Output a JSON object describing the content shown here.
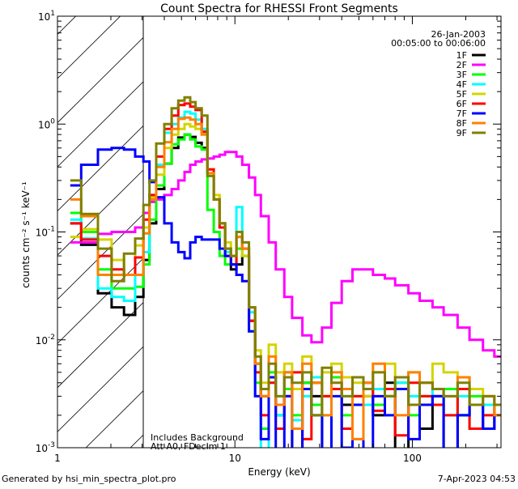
{
  "chart_data": {
    "type": "line",
    "title": "Count Spectra for RHESSI Front Segments",
    "xlabel": "Energy (keV)",
    "ylabel": "counts cm⁻² s⁻¹ keV⁻¹",
    "xscale": "log",
    "yscale": "log",
    "xlim": [
      1,
      316
    ],
    "ylim": [
      0.001,
      10
    ],
    "x_tick_labels": [
      "1",
      "10",
      "100"
    ],
    "x_tick_values": [
      1,
      10,
      100
    ],
    "y_ticks": [
      {
        "base": "10",
        "exp": "1",
        "value": 10
      },
      {
        "base": "10",
        "exp": "0",
        "value": 1
      },
      {
        "base": "10",
        "exp": "-1",
        "value": 0.1
      },
      {
        "base": "10",
        "exp": "-2",
        "value": 0.01
      },
      {
        "base": "10",
        "exp": "-3",
        "value": 0.001
      }
    ],
    "date": "26-Jan-2003",
    "time_range": "00:05:00 to 00:06:00",
    "shaded_region_keV": [
      1,
      3.05
    ],
    "annotations": [
      "Includes Background",
      "Att A0, FDecim 1"
    ],
    "legend_position": "top-right",
    "energy_bin_edges": [
      1.18,
      1.36,
      1.69,
      2.02,
      2.37,
      2.74,
      3.05,
      3.3,
      3.6,
      4.0,
      4.4,
      4.8,
      5.2,
      5.6,
      6.0,
      6.5,
      7.0,
      7.6,
      8.2,
      8.8,
      9.5,
      10.2,
      11.0,
      12.0,
      13.0,
      14.0,
      15.5,
      17,
      19,
      21,
      24,
      27,
      31,
      35,
      40,
      46,
      53,
      60,
      70,
      80,
      95,
      110,
      130,
      150,
      180,
      210,
      250,
      290,
      316
    ],
    "series": [
      {
        "name": "1F",
        "color": "#000000",
        "values": [
          0.12,
          0.076,
          0.027,
          0.02,
          0.017,
          0.025,
          0.055,
          0.12,
          0.25,
          0.43,
          0.6,
          0.75,
          0.8,
          0.76,
          0.67,
          0.6,
          0.35,
          0.2,
          0.12,
          0.06,
          0.045,
          0.05,
          0.06,
          0.015,
          0.006,
          0.003,
          0.0045,
          0.002,
          0.005,
          0.0009,
          0.004,
          0.003,
          0.0008,
          0.0035,
          0.0025,
          0.0009,
          0.003,
          0.002,
          0.004,
          0.0008,
          0.0025,
          0.0015,
          0.003,
          0.0007,
          0.002,
          0.0025,
          0.0015,
          0.002
        ]
      },
      {
        "name": "2F",
        "color": "#ff00ff",
        "values": [
          0.08,
          0.08,
          0.096,
          0.1,
          0.1,
          0.11,
          0.15,
          0.19,
          0.2,
          0.22,
          0.25,
          0.3,
          0.36,
          0.42,
          0.45,
          0.47,
          0.48,
          0.5,
          0.52,
          0.55,
          0.55,
          0.5,
          0.42,
          0.32,
          0.22,
          0.14,
          0.08,
          0.045,
          0.025,
          0.016,
          0.011,
          0.0095,
          0.013,
          0.022,
          0.035,
          0.045,
          0.045,
          0.04,
          0.037,
          0.032,
          0.027,
          0.023,
          0.02,
          0.017,
          0.013,
          0.01,
          0.008,
          0.007
        ]
      },
      {
        "name": "3F",
        "color": "#00ff00",
        "values": [
          0.15,
          0.1,
          0.045,
          0.03,
          0.03,
          0.031,
          0.05,
          0.13,
          0.27,
          0.43,
          0.65,
          0.72,
          0.8,
          0.72,
          0.62,
          0.58,
          0.16,
          0.1,
          0.06,
          0.05,
          0.05,
          0.07,
          0.06,
          0.012,
          0.004,
          0.0015,
          0.005,
          0.003,
          0.0035,
          0.002,
          0.004,
          0.0025,
          0.003,
          0.0045,
          0.002,
          0.003,
          0.0035,
          0.0025,
          0.003,
          0.004,
          0.002,
          0.003,
          0.0025,
          0.0035,
          0.002,
          0.003,
          0.0025,
          0.002
        ]
      },
      {
        "name": "4F",
        "color": "#00ffff",
        "values": [
          0.13,
          0.087,
          0.03,
          0.025,
          0.023,
          0.04,
          0.065,
          0.22,
          0.42,
          0.83,
          1.0,
          1.15,
          1.3,
          1.25,
          1.1,
          0.9,
          0.35,
          0.2,
          0.11,
          0.065,
          0.06,
          0.17,
          0.07,
          0.018,
          0.003,
          0.0009,
          0.004,
          0.002,
          0.005,
          0.0018,
          0.003,
          0.0045,
          0.002,
          0.0035,
          0.003,
          0.0012,
          0.0025,
          0.0035,
          0.002,
          0.004,
          0.003,
          0.0025,
          0.0035,
          0.002,
          0.003,
          0.0015,
          0.0025,
          0.002
        ]
      },
      {
        "name": "5F",
        "color": "#d4d400",
        "values": [
          0.09,
          0.106,
          0.085,
          0.055,
          0.04,
          0.075,
          0.11,
          0.21,
          0.34,
          0.6,
          0.8,
          0.9,
          1.0,
          0.95,
          0.9,
          0.85,
          0.38,
          0.22,
          0.12,
          0.08,
          0.06,
          0.1,
          0.06,
          0.02,
          0.008,
          0.004,
          0.009,
          0.005,
          0.006,
          0.0035,
          0.007,
          0.004,
          0.005,
          0.006,
          0.0045,
          0.004,
          0.003,
          0.005,
          0.006,
          0.0035,
          0.005,
          0.004,
          0.006,
          0.005,
          0.0045,
          0.0035,
          0.003,
          0.0025
        ]
      },
      {
        "name": "6F",
        "color": "#ff0000",
        "values": [
          0.12,
          0.085,
          0.06,
          0.045,
          0.04,
          0.058,
          0.13,
          0.22,
          0.5,
          0.9,
          1.2,
          1.5,
          1.55,
          1.45,
          1.35,
          0.85,
          0.38,
          0.2,
          0.11,
          0.06,
          0.05,
          0.09,
          0.07,
          0.015,
          0.005,
          0.002,
          0.004,
          0.0015,
          0.003,
          0.005,
          0.0012,
          0.004,
          0.003,
          0.0035,
          0.0015,
          0.003,
          0.004,
          0.0022,
          0.0035,
          0.0013,
          0.004,
          0.003,
          0.0025,
          0.002,
          0.0035,
          0.0015,
          0.002,
          0.0025
        ]
      },
      {
        "name": "7F",
        "color": "#0000ff",
        "values": [
          0.27,
          0.42,
          0.58,
          0.6,
          0.58,
          0.5,
          0.45,
          0.29,
          0.21,
          0.12,
          0.08,
          0.065,
          0.057,
          0.08,
          0.09,
          0.085,
          0.085,
          0.085,
          0.07,
          0.06,
          0.05,
          0.04,
          0.035,
          0.012,
          0.003,
          0.0012,
          0.0045,
          0.0008,
          0.003,
          0.0006,
          0.0035,
          0.002,
          0.0008,
          0.003,
          0.001,
          0.0025,
          0.0008,
          0.003,
          0.002,
          0.0035,
          0.0012,
          0.0025,
          0.003,
          0.0009,
          0.002,
          0.0025,
          0.0015,
          0.002
        ]
      },
      {
        "name": "8F",
        "color": "#ff8000",
        "values": [
          0.2,
          0.14,
          0.04,
          0.04,
          0.04,
          0.04,
          0.097,
          0.2,
          0.4,
          0.68,
          0.9,
          1.12,
          1.15,
          1.1,
          1.0,
          0.8,
          0.35,
          0.2,
          0.12,
          0.07,
          0.06,
          0.09,
          0.07,
          0.02,
          0.006,
          0.003,
          0.007,
          0.0025,
          0.005,
          0.0015,
          0.006,
          0.004,
          0.002,
          0.005,
          0.0035,
          0.0012,
          0.004,
          0.006,
          0.003,
          0.002,
          0.005,
          0.004,
          0.0035,
          0.003,
          0.0045,
          0.0025,
          0.003,
          0.002
        ]
      },
      {
        "name": "9F",
        "color": "#808000",
        "values": [
          0.3,
          0.147,
          0.07,
          0.035,
          0.063,
          0.087,
          0.178,
          0.3,
          0.66,
          1.0,
          1.4,
          1.65,
          1.77,
          1.6,
          1.4,
          1.2,
          0.33,
          0.2,
          0.12,
          0.07,
          0.06,
          0.1,
          0.08,
          0.02,
          0.007,
          0.0035,
          0.006,
          0.003,
          0.0045,
          0.004,
          0.005,
          0.002,
          0.0055,
          0.004,
          0.003,
          0.0045,
          0.0035,
          0.005,
          0.003,
          0.0045,
          0.0025,
          0.004,
          0.0035,
          0.003,
          0.004,
          0.0025,
          0.003,
          0.0025
        ]
      }
    ]
  },
  "footer": {
    "generated_by": "Generated by hsi_min_spectra_plot.pro",
    "timestamp": "7-Apr-2023 04:53"
  }
}
